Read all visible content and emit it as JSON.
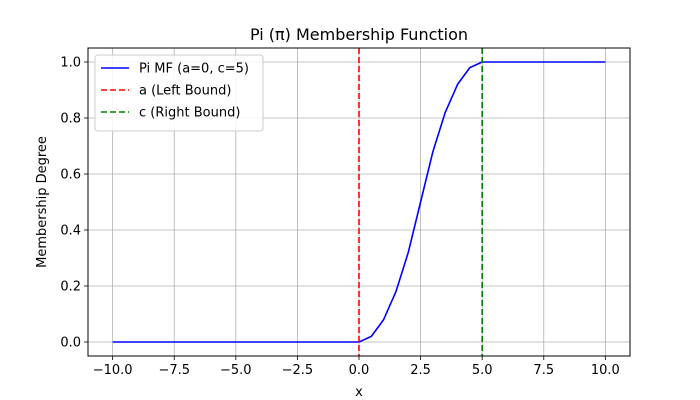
{
  "chart_data": {
    "type": "line",
    "title": "Pi (π) Membership Function",
    "xlabel": "x",
    "ylabel": "Membership Degree",
    "xlim": [
      -11,
      11
    ],
    "ylim": [
      -0.05,
      1.05
    ],
    "grid": true,
    "legend_position": "top-left",
    "x_ticks": [
      -10,
      -7.5,
      -5,
      -2.5,
      0,
      2.5,
      5,
      7.5,
      10
    ],
    "x_tick_labels": [
      "−10.0",
      "−7.5",
      "−5.0",
      "−2.5",
      "0.0",
      "2.5",
      "5.0",
      "7.5",
      "10.0"
    ],
    "y_ticks": [
      0,
      0.2,
      0.4,
      0.6,
      0.8,
      1.0
    ],
    "y_tick_labels": [
      "0.0",
      "0.2",
      "0.4",
      "0.6",
      "0.8",
      "1.0"
    ],
    "series": [
      {
        "name": "Pi MF (a=0, c=5)",
        "color": "#0000ff",
        "style": "solid",
        "x": [
          -10,
          -5,
          0,
          0.5,
          1,
          1.5,
          2,
          2.5,
          3,
          3.5,
          4,
          4.5,
          5,
          7.5,
          10
        ],
        "y": [
          0,
          0,
          0,
          0.02,
          0.08,
          0.18,
          0.32,
          0.5,
          0.68,
          0.82,
          0.92,
          0.98,
          1.0,
          1.0,
          1.0
        ]
      }
    ],
    "vlines": [
      {
        "name": "a (Left Bound)",
        "x": 0,
        "color": "#ff0000",
        "style": "dashed"
      },
      {
        "name": "c (Right Bound)",
        "x": 5,
        "color": "#008000",
        "style": "dashed"
      }
    ]
  }
}
